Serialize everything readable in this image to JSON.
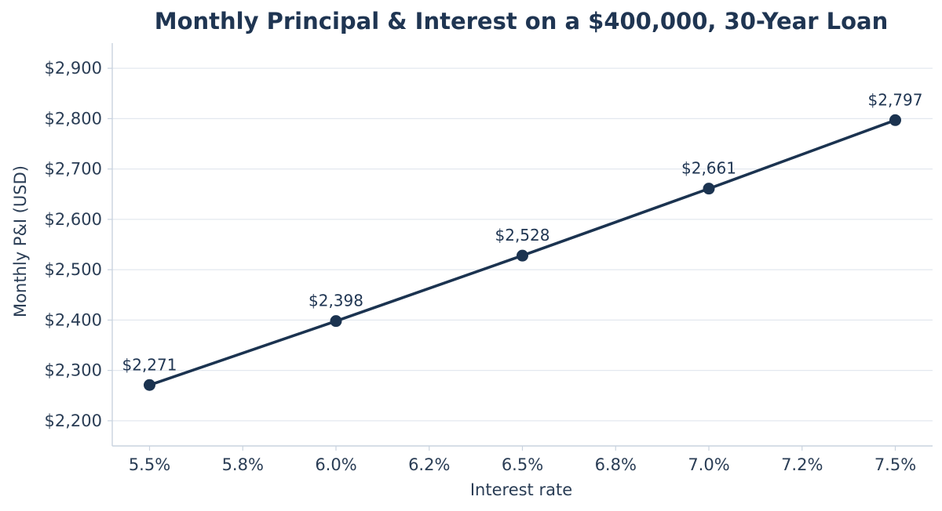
{
  "chart_data": {
    "type": "line",
    "title": "Monthly Principal & Interest on a $400,000, 30-Year Loan",
    "xlabel": "Interest rate",
    "ylabel": "Monthly P&I (USD)",
    "x": [
      5.5,
      6.0,
      6.5,
      7.0,
      7.5
    ],
    "series": [
      {
        "values": [
          2271,
          2398,
          2528,
          2661,
          2797
        ],
        "data_labels": [
          "$2,271",
          "$2,398",
          "$2,528",
          "$2,661",
          "$2,797"
        ]
      }
    ],
    "xlim": [
      5.4,
      7.6
    ],
    "ylim": [
      2150,
      2950
    ],
    "x_ticks": [
      5.5,
      5.75,
      6.0,
      6.25,
      6.5,
      6.75,
      7.0,
      7.25,
      7.5
    ],
    "x_tick_labels": [
      "5.5%",
      "5.8%",
      "6.0%",
      "6.2%",
      "6.5%",
      "6.8%",
      "7.0%",
      "7.2%",
      "7.5%"
    ],
    "y_ticks": [
      2200,
      2300,
      2400,
      2500,
      2600,
      2700,
      2800,
      2900
    ],
    "y_tick_labels": [
      "$2,200",
      "$2,300",
      "$2,400",
      "$2,500",
      "$2,600",
      "$2,700",
      "$2,800",
      "$2,900"
    ],
    "grid": "horizontal",
    "colors": {
      "line": "#1b3350",
      "grid": "#e3e8ef",
      "axis": "#c9d3df",
      "text": "#2a3d55"
    }
  }
}
